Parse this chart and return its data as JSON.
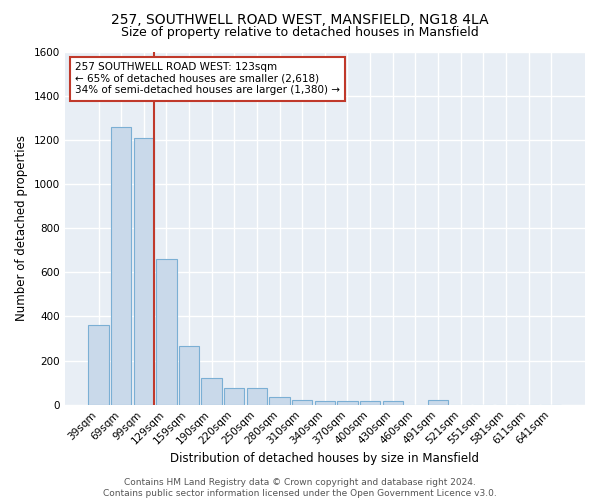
{
  "title1": "257, SOUTHWELL ROAD WEST, MANSFIELD, NG18 4LA",
  "title2": "Size of property relative to detached houses in Mansfield",
  "xlabel": "Distribution of detached houses by size in Mansfield",
  "ylabel": "Number of detached properties",
  "footer": "Contains HM Land Registry data © Crown copyright and database right 2024.\nContains public sector information licensed under the Open Government Licence v3.0.",
  "bins": [
    "39sqm",
    "69sqm",
    "99sqm",
    "129sqm",
    "159sqm",
    "190sqm",
    "220sqm",
    "250sqm",
    "280sqm",
    "310sqm",
    "340sqm",
    "370sqm",
    "400sqm",
    "430sqm",
    "460sqm",
    "491sqm",
    "521sqm",
    "551sqm",
    "581sqm",
    "611sqm",
    "641sqm"
  ],
  "values": [
    360,
    1258,
    1210,
    660,
    265,
    120,
    75,
    75,
    35,
    22,
    15,
    15,
    15,
    15,
    0,
    20,
    0,
    0,
    0,
    0,
    0
  ],
  "bar_color": "#c9d9ea",
  "bar_edge_color": "#7bafd4",
  "bar_linewidth": 0.8,
  "vline_color": "#c0392b",
  "vline_linewidth": 1.5,
  "annotation_line1": "257 SOUTHWELL ROAD WEST: 123sqm",
  "annotation_line2": "← 65% of detached houses are smaller (2,618)",
  "annotation_line3": "34% of semi-detached houses are larger (1,380) →",
  "annotation_box_color": "#c0392b",
  "ylim": [
    0,
    1600
  ],
  "background_color": "#e8eef5",
  "grid_color": "#ffffff",
  "title1_fontsize": 10,
  "title2_fontsize": 9,
  "xlabel_fontsize": 8.5,
  "ylabel_fontsize": 8.5,
  "tick_fontsize": 7.5,
  "footer_fontsize": 6.5
}
